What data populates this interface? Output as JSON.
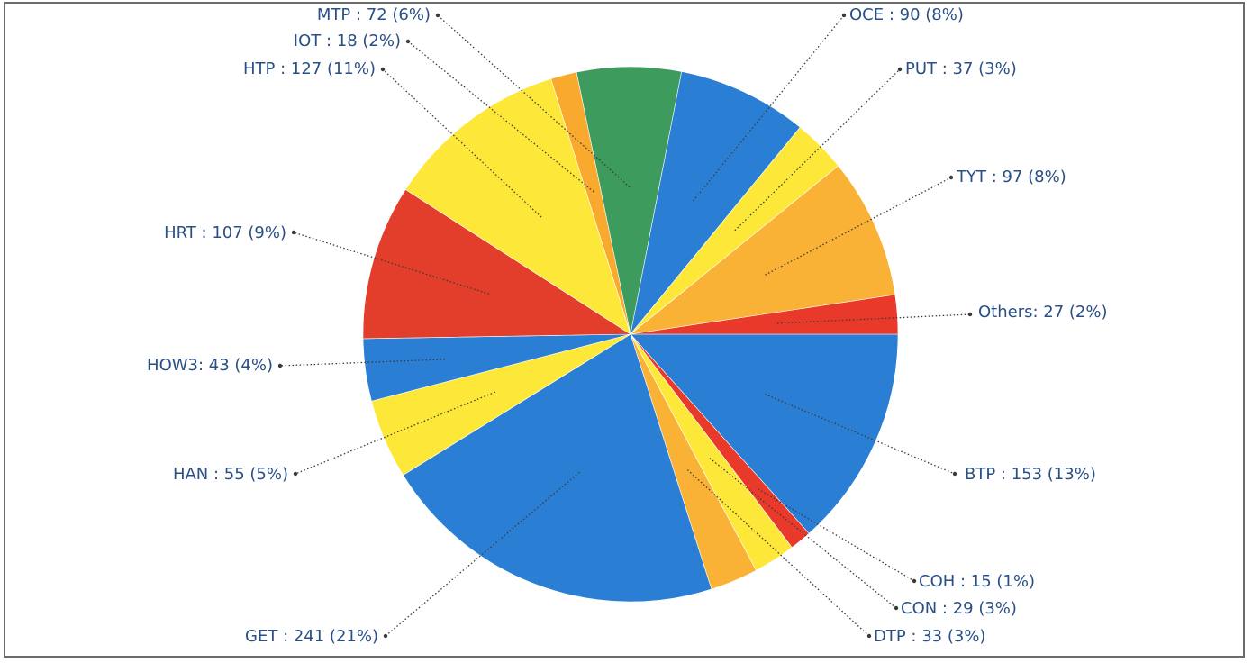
{
  "chart_data": {
    "type": "pie",
    "title": "",
    "slices": [
      {
        "label": "BTP : 153 (13%)",
        "category": "BTP",
        "value": 153,
        "percent": 13,
        "color": "#2a7fd5"
      },
      {
        "label": "COH : 15 (1%)",
        "category": "COH",
        "value": 15,
        "percent": 1,
        "color": "#e8392a"
      },
      {
        "label": "CON : 29 (3%)",
        "category": "CON",
        "value": 29,
        "percent": 3,
        "color": "#fde83a"
      },
      {
        "label": "DTP : 33 (3%)",
        "category": "DTP",
        "value": 33,
        "percent": 3,
        "color": "#f9b236"
      },
      {
        "label": "GET : 241 (21%)",
        "category": "GET",
        "value": 241,
        "percent": 21,
        "color": "#2a7fd5"
      },
      {
        "label": "HAN : 55 (5%)",
        "category": "HAN",
        "value": 55,
        "percent": 5,
        "color": "#fde83a"
      },
      {
        "label": "HOW3: 43 (4%)",
        "category": "HOW3",
        "value": 43,
        "percent": 4,
        "color": "#2a7fd5"
      },
      {
        "label": "HRT : 107 (9%)",
        "category": "HRT",
        "value": 107,
        "percent": 9,
        "color": "#e23e2b"
      },
      {
        "label": "HTP : 127 (11%)",
        "category": "HTP",
        "value": 127,
        "percent": 11,
        "color": "#fde83a"
      },
      {
        "label": "IOT : 18 (2%)",
        "category": "IOT",
        "value": 18,
        "percent": 2,
        "color": "#f9a92d"
      },
      {
        "label": "MTP : 72 (6%)",
        "category": "MTP",
        "value": 72,
        "percent": 6,
        "color": "#3d9b5e"
      },
      {
        "label": "OCE : 90 (8%)",
        "category": "OCE",
        "value": 90,
        "percent": 8,
        "color": "#2a7fd5"
      },
      {
        "label": "PUT : 37 (3%)",
        "category": "PUT",
        "value": 37,
        "percent": 3,
        "color": "#fde83a"
      },
      {
        "label": "TYT : 97 (8%)",
        "category": "TYT",
        "value": 97,
        "percent": 8,
        "color": "#f9b236"
      },
      {
        "label": "Others: 27 (2%)",
        "category": "Others",
        "value": 27,
        "percent": 2,
        "color": "#e8392a"
      }
    ]
  }
}
